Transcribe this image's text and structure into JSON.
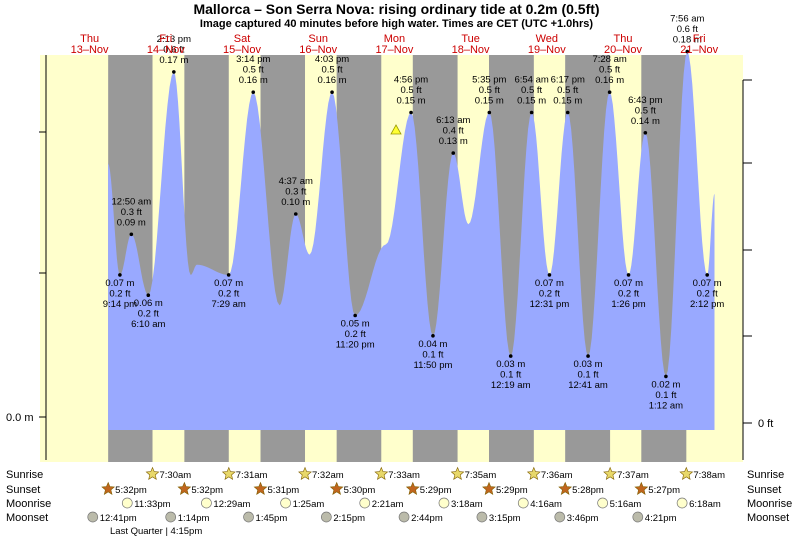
{
  "header": {
    "title": "Mallorca – Son Serra Nova: rising  ordinary tide at 0.2m (0.5ft)",
    "subtitle": "Image captured 40 minutes before high water. Times are CET (UTC +1.0hrs)"
  },
  "colors": {
    "night": "#999999",
    "day": "#ffffcc",
    "tide": "#99a9ff",
    "day_label": "#cc0000",
    "sunrise_star": "#e8d86a",
    "sunset_star": "#c0651e",
    "moonrise_icon": "#ffffcc",
    "moonset_icon": "#bbbbaa"
  },
  "axes": {
    "left_unit": "0.0 m",
    "right_unit": "0 ft"
  },
  "days": [
    {
      "name": "Thu",
      "date": "13–Nov"
    },
    {
      "name": "Fri",
      "date": "14–Nov"
    },
    {
      "name": "Sat",
      "date": "15–Nov"
    },
    {
      "name": "Sun",
      "date": "16–Nov"
    },
    {
      "name": "Mon",
      "date": "17–Nov"
    },
    {
      "name": "Tue",
      "date": "18–Nov"
    },
    {
      "name": "Wed",
      "date": "19–Nov"
    },
    {
      "name": "Thu",
      "date": "20–Nov"
    },
    {
      "name": "Fri",
      "date": "21–Nov"
    }
  ],
  "chart_data": {
    "type": "area",
    "title": "Mallorca – Son Serra Nova: rising  ordinary tide at 0.2m (0.5ft)",
    "subtitle": "Image captured 40 minutes before high water. Times are CET (UTC +1.0hrs)",
    "x_unit": "hours since Thu 13–Nov 00:00 CET",
    "y_unit": "m",
    "ylim": [
      -0.01,
      0.2
    ],
    "current_level_m": 0.2,
    "tides": [
      {
        "kind": "low",
        "t": 21.23,
        "time": "9:14 pm",
        "m": "0.07 m",
        "ft": "0.2 ft",
        "v": 0.07
      },
      {
        "kind": "high",
        "t": 24.83,
        "time": "12:50 am",
        "m": "0.09 m",
        "ft": "0.3 ft",
        "v": 0.09
      },
      {
        "kind": "low",
        "t": 30.17,
        "time": "6:10 am",
        "m": "0.06 m",
        "ft": "0.2 ft",
        "v": 0.06
      },
      {
        "kind": "high",
        "t": 38.22,
        "time": "2:13 pm",
        "m": "0.17 m",
        "ft": "0.6 ft",
        "v": 0.17
      },
      {
        "kind": "low",
        "t": 55.48,
        "time": "7:29 am",
        "m": "0.07 m",
        "ft": "0.2 ft",
        "v": 0.07
      },
      {
        "kind": "high",
        "t": 63.23,
        "time": "3:14 pm",
        "m": "0.16 m",
        "ft": "0.5 ft",
        "v": 0.16
      },
      {
        "kind": "high",
        "t": 76.62,
        "time": "4:37 am",
        "m": "0.10 m",
        "ft": "0.3 ft",
        "v": 0.1
      },
      {
        "kind": "high",
        "t": 88.05,
        "time": "4:03 pm",
        "m": "0.16 m",
        "ft": "0.5 ft",
        "v": 0.16
      },
      {
        "kind": "low",
        "t": 95.33,
        "time": "11:20 pm",
        "m": "0.05 m",
        "ft": "0.2 ft",
        "v": 0.05
      },
      {
        "kind": "high",
        "t": 112.93,
        "time": "4:56 pm",
        "m": "0.15 m",
        "ft": "0.5 ft",
        "v": 0.15
      },
      {
        "kind": "low",
        "t": 119.83,
        "time": "11:50 pm",
        "m": "0.04 m",
        "ft": "0.1 ft",
        "v": 0.04
      },
      {
        "kind": "high",
        "t": 126.22,
        "time": "6:13 am",
        "m": "0.13 m",
        "ft": "0.4 ft",
        "v": 0.13
      },
      {
        "kind": "high",
        "t": 137.58,
        "time": "5:35 pm",
        "m": "0.15 m",
        "ft": "0.5 ft",
        "v": 0.15
      },
      {
        "kind": "low",
        "t": 144.32,
        "time": "12:19 am",
        "m": "0.03 m",
        "ft": "0.1 ft",
        "v": 0.03
      },
      {
        "kind": "high",
        "t": 150.9,
        "time": "6:54 am",
        "m": "0.15 m",
        "ft": "0.5 ft",
        "v": 0.15
      },
      {
        "kind": "low",
        "t": 156.52,
        "time": "12:31 pm",
        "m": "0.07 m",
        "ft": "0.2 ft",
        "v": 0.07
      },
      {
        "kind": "high",
        "t": 162.28,
        "time": "6:17 pm",
        "m": "0.15 m",
        "ft": "0.5 ft",
        "v": 0.15
      },
      {
        "kind": "low",
        "t": 168.68,
        "time": "12:41 am",
        "m": "0.03 m",
        "ft": "0.1 ft",
        "v": 0.03
      },
      {
        "kind": "high",
        "t": 175.47,
        "time": "7:28 am",
        "m": "0.16 m",
        "ft": "0.5 ft",
        "v": 0.16
      },
      {
        "kind": "low",
        "t": 181.43,
        "time": "1:26 pm",
        "m": "0.07 m",
        "ft": "0.2 ft",
        "v": 0.07
      },
      {
        "kind": "high",
        "t": 186.72,
        "time": "6:43 pm",
        "m": "0.14 m",
        "ft": "0.5 ft",
        "v": 0.14
      },
      {
        "kind": "low",
        "t": 193.2,
        "time": "1:12 am",
        "m": "0.02 m",
        "ft": "0.1 ft",
        "v": 0.02
      },
      {
        "kind": "high",
        "t": 199.93,
        "time": "7:56 am",
        "m": "0.18 m",
        "ft": "0.6 ft",
        "v": 0.18
      },
      {
        "kind": "low",
        "t": 206.2,
        "time": "2:12 pm",
        "m": "0.07 m",
        "ft": "0.2 ft",
        "v": 0.07
      }
    ],
    "hidden_extremes": [
      {
        "kind": "low",
        "t": 43.5,
        "v": 0.07
      },
      {
        "kind": "high",
        "t": 45.5,
        "v": 0.075
      },
      {
        "kind": "low",
        "t": 71.5,
        "v": 0.055
      },
      {
        "kind": "low",
        "t": 81.0,
        "v": 0.08
      },
      {
        "kind": "low",
        "t": 105.0,
        "v": 0.085
      },
      {
        "kind": "low",
        "t": 131.0,
        "v": 0.095
      }
    ]
  },
  "sun_moon": {
    "labels": {
      "sunrise": "Sunrise",
      "sunset": "Sunset",
      "moonrise": "Moonrise",
      "moonset": "Moonset"
    },
    "sunrise": [
      {
        "t": 31.5,
        "time": "7:30am"
      },
      {
        "t": 55.52,
        "time": "7:31am"
      },
      {
        "t": 79.53,
        "time": "7:32am"
      },
      {
        "t": 103.55,
        "time": "7:33am"
      },
      {
        "t": 127.58,
        "time": "7:35am"
      },
      {
        "t": 151.6,
        "time": "7:36am"
      },
      {
        "t": 175.62,
        "time": "7:37am"
      },
      {
        "t": 199.63,
        "time": "7:38am"
      }
    ],
    "sunset": [
      {
        "t": 17.53,
        "time": "5:32pm"
      },
      {
        "t": 41.53,
        "time": "5:32pm"
      },
      {
        "t": 65.52,
        "time": "5:31pm"
      },
      {
        "t": 89.5,
        "time": "5:30pm"
      },
      {
        "t": 113.48,
        "time": "5:29pm"
      },
      {
        "t": 137.48,
        "time": "5:29pm"
      },
      {
        "t": 161.47,
        "time": "5:28pm"
      },
      {
        "t": 185.45,
        "time": "5:27pm"
      }
    ],
    "moonrise": [
      {
        "t": 23.55,
        "time": "11:33pm"
      },
      {
        "t": 48.48,
        "time": "12:29am"
      },
      {
        "t": 73.42,
        "time": "1:25am"
      },
      {
        "t": 98.35,
        "time": "2:21am"
      },
      {
        "t": 123.3,
        "time": "3:18am"
      },
      {
        "t": 148.27,
        "time": "4:16am"
      },
      {
        "t": 173.27,
        "time": "5:16am"
      },
      {
        "t": 198.3,
        "time": "6:18am"
      }
    ],
    "moonset": [
      {
        "t": 12.68,
        "time": "12:41pm"
      },
      {
        "t": 37.23,
        "time": "1:14pm"
      },
      {
        "t": 61.75,
        "time": "1:45pm"
      },
      {
        "t": 86.25,
        "time": "2:15pm"
      },
      {
        "t": 110.73,
        "time": "2:44pm"
      },
      {
        "t": 135.25,
        "time": "3:15pm"
      },
      {
        "t": 159.77,
        "time": "3:46pm"
      },
      {
        "t": 184.35,
        "time": "4:21pm"
      }
    ],
    "moon_phase": "Last Quarter | 4:15pm"
  }
}
